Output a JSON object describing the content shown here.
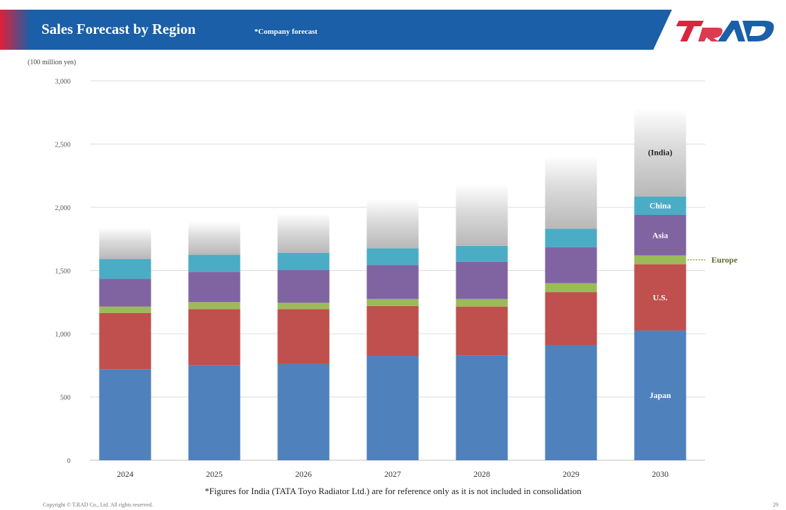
{
  "header": {
    "title": "Sales Forecast by Region",
    "subtitle": "*Company forecast",
    "logo_text": "TRAD",
    "banner_color": "#1a5fa8",
    "accent_color": "#d7263d"
  },
  "unit_label": "(100 million yen)",
  "footnote": "*Figures for India (TATA Toyo Radiator Ltd.) are for reference only as it is not included in consolidation",
  "copyright": "Copyright © T.RAD Co., Ltd. All rights reserved.",
  "page_number": "29",
  "chart_data": {
    "type": "bar",
    "stacked": true,
    "title": "",
    "xlabel": "",
    "ylabel": "(100 million yen)",
    "ylim": [
      0,
      3000
    ],
    "yticks": [
      0,
      500,
      1000,
      1500,
      2000,
      2500,
      3000
    ],
    "ytick_labels": [
      "0",
      "500",
      "1,000",
      "1,500",
      "2,000",
      "2,500",
      "3,000"
    ],
    "grid": true,
    "categories": [
      "2024",
      "2025",
      "2026",
      "2027",
      "2028",
      "2029",
      "2030"
    ],
    "series": [
      {
        "name": "Japan",
        "color": "#4f81bd",
        "values": [
          720,
          750,
          760,
          825,
          830,
          910,
          1025
        ]
      },
      {
        "name": "U.S.",
        "color": "#c0504d",
        "values": [
          445,
          445,
          435,
          395,
          385,
          420,
          525
        ]
      },
      {
        "name": "Europe",
        "color": "#9bbb59",
        "values": [
          50,
          55,
          50,
          55,
          60,
          70,
          70
        ]
      },
      {
        "name": "Asia",
        "color": "#8064a2",
        "values": [
          220,
          240,
          260,
          270,
          295,
          285,
          320
        ]
      },
      {
        "name": "China",
        "color": "#4bacc6",
        "values": [
          155,
          135,
          135,
          130,
          125,
          145,
          145
        ]
      },
      {
        "name": "(India)",
        "color": "#bfbfbf",
        "gradient": true,
        "values": [
          250,
          260,
          310,
          390,
          490,
          580,
          700
        ]
      }
    ],
    "segment_labels_on": "2030",
    "external_label": "Europe"
  }
}
